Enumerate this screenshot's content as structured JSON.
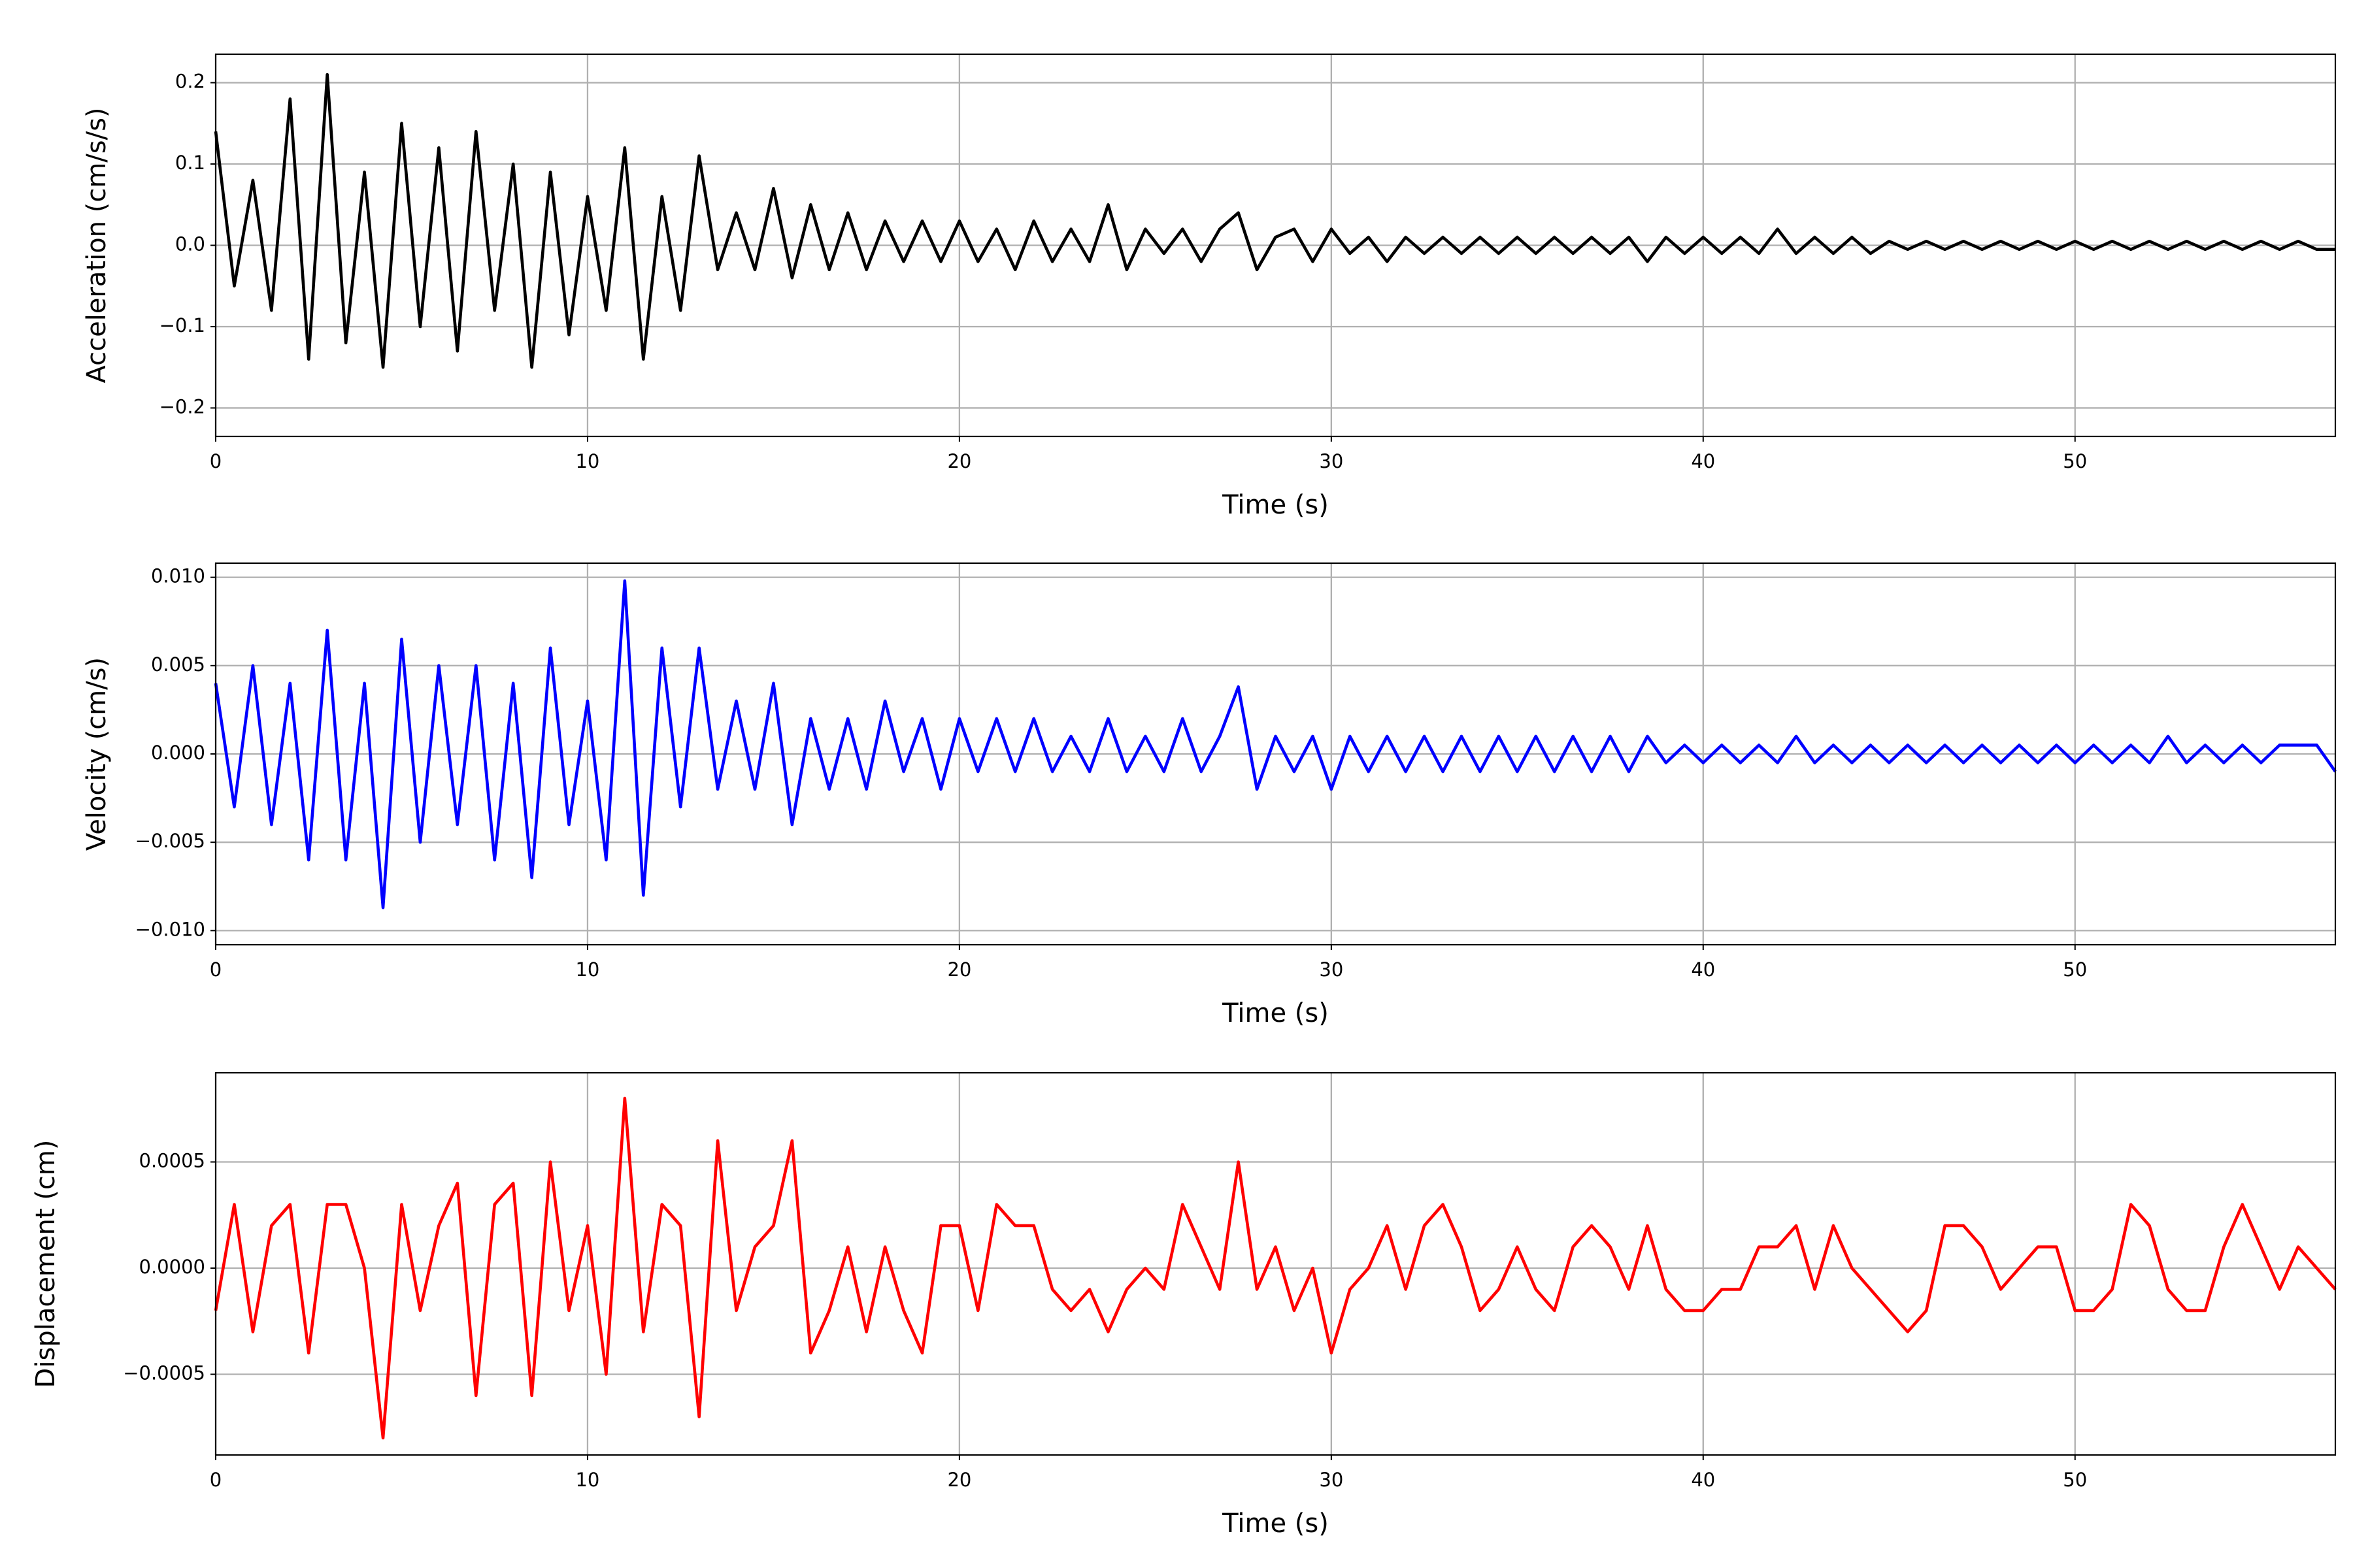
{
  "chart_data": [
    {
      "type": "line",
      "xlabel": "Time (s)",
      "ylabel": "Acceleration (cm/s/s)",
      "color": "#000000",
      "grid": true,
      "xlim": [
        0,
        57
      ],
      "xticks": [
        0,
        10,
        20,
        30,
        40,
        50
      ],
      "ylim": [
        -0.235,
        0.235
      ],
      "yticks": [
        {
          "value": -0.2,
          "label": "−0.2"
        },
        {
          "value": -0.1,
          "label": "−0.1"
        },
        {
          "value": 0,
          "label": "0.0"
        },
        0.1,
        0.2
      ],
      "x": [
        0,
        0.5,
        1,
        1.5,
        2,
        2.5,
        3,
        3.5,
        4,
        4.5,
        5,
        5.5,
        6,
        6.5,
        7,
        7.5,
        8,
        8.5,
        9,
        9.5,
        10,
        10.5,
        11,
        11.5,
        12,
        12.5,
        13,
        13.5,
        14,
        14.5,
        15,
        15.5,
        16,
        16.5,
        17,
        17.5,
        18,
        18.5,
        19,
        19.5,
        20,
        20.5,
        21,
        21.5,
        22,
        22.5,
        23,
        23.5,
        24,
        24.5,
        25,
        25.5,
        26,
        26.5,
        27,
        27.5,
        28,
        28.5,
        29,
        29.5,
        30,
        30.5,
        31,
        31.5,
        32,
        32.5,
        33,
        33.5,
        34,
        34.5,
        35,
        35.5,
        36,
        36.5,
        37,
        37.5,
        38,
        38.5,
        39,
        39.5,
        40,
        40.5,
        41,
        41.5,
        42,
        42.5,
        43,
        43.5,
        44,
        44.5,
        45,
        45.5,
        46,
        46.5,
        47,
        47.5,
        48,
        48.5,
        49,
        49.5,
        50,
        50.5,
        51,
        51.5,
        52,
        52.5,
        53,
        53.5,
        54,
        54.5,
        55,
        55.5,
        56,
        56.5,
        57
      ],
      "values": [
        0.14,
        -0.05,
        0.08,
        -0.08,
        0.18,
        -0.14,
        0.21,
        -0.12,
        0.09,
        -0.15,
        0.15,
        -0.1,
        0.12,
        -0.13,
        0.14,
        -0.08,
        0.1,
        -0.15,
        0.09,
        -0.11,
        0.06,
        -0.08,
        0.12,
        -0.14,
        0.06,
        -0.08,
        0.11,
        -0.03,
        0.04,
        -0.03,
        0.07,
        -0.04,
        0.05,
        -0.03,
        0.04,
        -0.03,
        0.03,
        -0.02,
        0.03,
        -0.02,
        0.03,
        -0.02,
        0.02,
        -0.03,
        0.03,
        -0.02,
        0.02,
        -0.02,
        0.05,
        -0.03,
        0.02,
        -0.01,
        0.02,
        -0.02,
        0.02,
        0.04,
        -0.03,
        0.01,
        0.02,
        -0.02,
        0.02,
        -0.01,
        0.01,
        -0.02,
        0.01,
        -0.01,
        0.01,
        -0.01,
        0.01,
        -0.01,
        0.01,
        -0.01,
        0.01,
        -0.01,
        0.01,
        -0.01,
        0.01,
        -0.02,
        0.01,
        -0.01,
        0.01,
        -0.01,
        0.01,
        -0.01,
        0.02,
        -0.01,
        0.01,
        -0.01,
        0.01,
        -0.01,
        0.005,
        -0.005,
        0.005,
        -0.005,
        0.005,
        -0.005,
        0.005,
        -0.005,
        0.005,
        -0.005,
        0.005,
        -0.005,
        0.005,
        -0.005,
        0.005,
        -0.005,
        0.005,
        -0.005,
        0.005,
        -0.005,
        0.005,
        -0.005,
        0.005,
        -0.005,
        -0.005
      ]
    },
    {
      "type": "line",
      "xlabel": "Time (s)",
      "ylabel": "Velocity (cm/s)",
      "color": "#0000ff",
      "grid": true,
      "xlim": [
        0,
        57
      ],
      "xticks": [
        0,
        10,
        20,
        30,
        40,
        50
      ],
      "ylim": [
        -0.0108,
        0.0108
      ],
      "yticks": [
        {
          "value": -0.01,
          "label": "−0.010"
        },
        {
          "value": -0.005,
          "label": "−0.005"
        },
        {
          "value": 0,
          "label": "0.000"
        },
        0.005,
        {
          "value": 0.01,
          "label": "0.010"
        }
      ],
      "x": [
        0,
        0.5,
        1,
        1.5,
        2,
        2.5,
        3,
        3.5,
        4,
        4.5,
        5,
        5.5,
        6,
        6.5,
        7,
        7.5,
        8,
        8.5,
        9,
        9.5,
        10,
        10.5,
        11,
        11.5,
        12,
        12.5,
        13,
        13.5,
        14,
        14.5,
        15,
        15.5,
        16,
        16.5,
        17,
        17.5,
        18,
        18.5,
        19,
        19.5,
        20,
        20.5,
        21,
        21.5,
        22,
        22.5,
        23,
        23.5,
        24,
        24.5,
        25,
        25.5,
        26,
        26.5,
        27,
        27.5,
        28,
        28.5,
        29,
        29.5,
        30,
        30.5,
        31,
        31.5,
        32,
        32.5,
        33,
        33.5,
        34,
        34.5,
        35,
        35.5,
        36,
        36.5,
        37,
        37.5,
        38,
        38.5,
        39,
        39.5,
        40,
        40.5,
        41,
        41.5,
        42,
        42.5,
        43,
        43.5,
        44,
        44.5,
        45,
        45.5,
        46,
        46.5,
        47,
        47.5,
        48,
        48.5,
        49,
        49.5,
        50,
        50.5,
        51,
        51.5,
        52,
        52.5,
        53,
        53.5,
        54,
        54.5,
        55,
        55.5,
        56,
        56.5,
        57
      ],
      "values": [
        0.004,
        -0.003,
        0.005,
        -0.004,
        0.004,
        -0.006,
        0.007,
        -0.006,
        0.004,
        -0.0087,
        0.0065,
        -0.005,
        0.005,
        -0.004,
        0.005,
        -0.006,
        0.004,
        -0.007,
        0.006,
        -0.004,
        0.003,
        -0.006,
        0.0098,
        -0.008,
        0.006,
        -0.003,
        0.006,
        -0.002,
        0.003,
        -0.002,
        0.004,
        -0.004,
        0.002,
        -0.002,
        0.002,
        -0.002,
        0.003,
        -0.001,
        0.002,
        -0.002,
        0.002,
        -0.001,
        0.002,
        -0.001,
        0.002,
        -0.001,
        0.001,
        -0.001,
        0.002,
        -0.001,
        0.001,
        -0.001,
        0.002,
        -0.001,
        0.001,
        0.0038,
        -0.002,
        0.001,
        -0.001,
        0.001,
        -0.002,
        0.001,
        -0.001,
        0.001,
        -0.001,
        0.001,
        -0.001,
        0.001,
        -0.001,
        0.001,
        -0.001,
        0.001,
        -0.001,
        0.001,
        -0.001,
        0.001,
        -0.001,
        0.001,
        -0.0005,
        0.0005,
        -0.0005,
        0.0005,
        -0.0005,
        0.0005,
        -0.0005,
        0.001,
        -0.0005,
        0.0005,
        -0.0005,
        0.0005,
        -0.0005,
        0.0005,
        -0.0005,
        0.0005,
        -0.0005,
        0.0005,
        -0.0005,
        0.0005,
        -0.0005,
        0.0005,
        -0.0005,
        0.0005,
        -0.0005,
        0.0005,
        -0.0005,
        0.001,
        -0.0005,
        0.0005,
        -0.0005,
        0.0005,
        -0.0005,
        0.0005,
        0.0005,
        0.0005,
        -0.001
      ]
    },
    {
      "type": "line",
      "xlabel": "Time (s)",
      "ylabel": "Displacement (cm)",
      "color": "#ff0000",
      "grid": true,
      "xlim": [
        0,
        57
      ],
      "xticks": [
        0,
        10,
        20,
        30,
        40,
        50
      ],
      "ylim": [
        -0.00088,
        0.00092
      ],
      "yticks": [
        {
          "value": -0.0005,
          "label": "−0.0005"
        },
        {
          "value": 0,
          "label": "0.0000"
        },
        0.0005
      ],
      "x": [
        0,
        0.5,
        1,
        1.5,
        2,
        2.5,
        3,
        3.5,
        4,
        4.5,
        5,
        5.5,
        6,
        6.5,
        7,
        7.5,
        8,
        8.5,
        9,
        9.5,
        10,
        10.5,
        11,
        11.5,
        12,
        12.5,
        13,
        13.5,
        14,
        14.5,
        15,
        15.5,
        16,
        16.5,
        17,
        17.5,
        18,
        18.5,
        19,
        19.5,
        20,
        20.5,
        21,
        21.5,
        22,
        22.5,
        23,
        23.5,
        24,
        24.5,
        25,
        25.5,
        26,
        26.5,
        27,
        27.5,
        28,
        28.5,
        29,
        29.5,
        30,
        30.5,
        31,
        31.5,
        32,
        32.5,
        33,
        33.5,
        34,
        34.5,
        35,
        35.5,
        36,
        36.5,
        37,
        37.5,
        38,
        38.5,
        39,
        39.5,
        40,
        40.5,
        41,
        41.5,
        42,
        42.5,
        43,
        43.5,
        44,
        44.5,
        45,
        45.5,
        46,
        46.5,
        47,
        47.5,
        48,
        48.5,
        49,
        49.5,
        50,
        50.5,
        51,
        51.5,
        52,
        52.5,
        53,
        53.5,
        54,
        54.5,
        55,
        55.5,
        56,
        56.5,
        57
      ],
      "values": [
        -0.0002,
        0.0003,
        -0.0003,
        0.0002,
        0.0003,
        -0.0004,
        0.0003,
        0.0003,
        0,
        -0.0008,
        0.0003,
        -0.0002,
        0.0002,
        0.0004,
        -0.0006,
        0.0003,
        0.0004,
        -0.0006,
        0.0005,
        -0.0002,
        0.0002,
        -0.0005,
        0.0008,
        -0.0003,
        0.0003,
        0.0002,
        -0.0007,
        0.0006,
        -0.0002,
        0.0001,
        0.0002,
        0.0006,
        -0.0004,
        -0.0002,
        0.0001,
        -0.0003,
        0.0001,
        -0.0002,
        -0.0004,
        0.0002,
        0.0002,
        -0.0002,
        0.0003,
        0.0002,
        0.0002,
        -0.0001,
        -0.0002,
        -0.0001,
        -0.0003,
        -0.0001,
        0,
        -0.0001,
        0.0003,
        0.0001,
        -0.0001,
        0.0005,
        -0.0001,
        0.0001,
        -0.0002,
        0,
        -0.0004,
        -0.0001,
        0,
        0.0002,
        -0.0001,
        0.0002,
        0.0003,
        0.0001,
        -0.0002,
        -0.0001,
        0.0001,
        -0.0001,
        -0.0002,
        0.0001,
        0.0002,
        0.0001,
        -0.0001,
        0.0002,
        -0.0001,
        -0.0002,
        -0.0002,
        -0.0001,
        -0.0001,
        0.0001,
        0.0001,
        0.0002,
        -0.0001,
        0.0002,
        0,
        -0.0001,
        -0.0002,
        -0.0003,
        -0.0002,
        0.0002,
        0.0002,
        0.0001,
        -0.0001,
        0,
        0.0001,
        0.0001,
        -0.0002,
        -0.0002,
        -0.0001,
        0.0003,
        0.0002,
        -0.0001,
        -0.0002,
        -0.0002,
        0.0001,
        0.0003,
        0.0001,
        -0.0001,
        0.0001,
        0,
        -0.0001
      ]
    }
  ]
}
